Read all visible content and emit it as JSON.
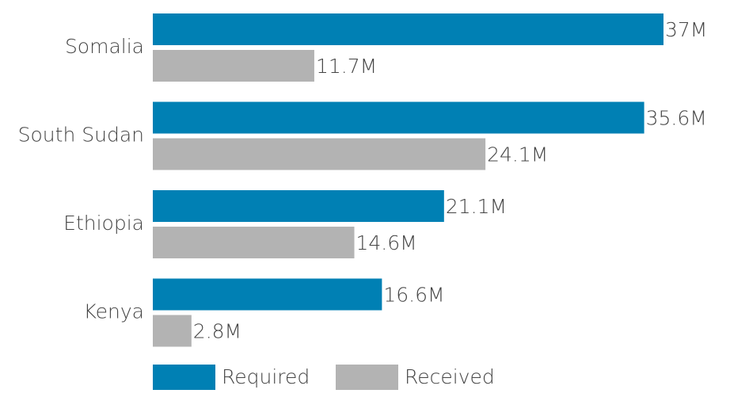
{
  "chart_data": {
    "type": "bar",
    "orientation": "horizontal",
    "categories": [
      "Somalia",
      "South Sudan",
      "Ethiopia",
      "Kenya"
    ],
    "series": [
      {
        "name": "Required",
        "color": "#0080b4",
        "values": [
          37,
          35.6,
          21.1,
          16.6
        ],
        "value_labels": [
          "37M",
          "35.6M",
          "21.1M",
          "16.6M"
        ]
      },
      {
        "name": "Received",
        "color": "#b3b3b3",
        "values": [
          11.7,
          24.1,
          14.6,
          2.8
        ],
        "value_labels": [
          "11.7M",
          "24.1M",
          "14.6M",
          "2.8M"
        ]
      }
    ],
    "legend": "bottom"
  }
}
